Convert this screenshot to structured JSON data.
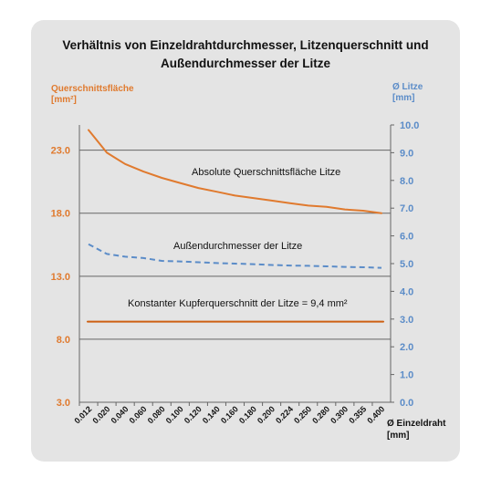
{
  "chart_data": {
    "type": "line",
    "title_line1": "Verhältnis von Einzeldrahtdurchmesser, Litzenquerschnitt und",
    "title_line2": "Außendurchmesser der Litze",
    "ylabel_left_line1": "Querschnittsfläche",
    "ylabel_left_line2": "[mm²]",
    "ylabel_right_line1": "Ø Litze",
    "ylabel_right_line2": "[mm]",
    "xlabel_line1": "Ø Einzeldraht",
    "xlabel_line2": "[mm]",
    "x_ticks": [
      "0.012",
      "0.020",
      "0.040",
      "0.060",
      "0.080",
      "0.100",
      "0.120",
      "0.140",
      "0.160",
      "0.180",
      "0.200",
      "0.224",
      "0.250",
      "0.280",
      "0.300",
      "0.355",
      "0.400"
    ],
    "y_left": {
      "range": [
        3.0,
        25.0
      ],
      "ticks": [
        "23.0",
        "18.0",
        "13.0",
        "8.0",
        "3.0"
      ],
      "tick_values": [
        23,
        18,
        13,
        8,
        3
      ]
    },
    "y_right": {
      "range": [
        0.0,
        10.0
      ],
      "ticks": [
        "10.0",
        "9.0",
        "8.0",
        "7.0",
        "6.0",
        "5.0",
        "4.0",
        "3.0",
        "2.0",
        "1.0",
        "0.0"
      ],
      "tick_values": [
        10,
        9,
        8,
        7,
        6,
        5,
        4,
        3,
        2,
        1,
        0
      ]
    },
    "colors": {
      "orange": "#e07a2e",
      "dark_orange": "#cd5f12",
      "blue": "#5b8cc8",
      "grid": "#666666"
    },
    "series": [
      {
        "axis": "left",
        "style": "solid",
        "color": "#e07a2e",
        "label": "Absolute Querschnittsfläche Litze",
        "values": [
          24.6,
          22.8,
          21.9,
          21.3,
          20.8,
          20.4,
          20.0,
          19.7,
          19.4,
          19.2,
          19.0,
          18.8,
          18.6,
          18.5,
          18.3,
          18.2,
          18.0
        ]
      },
      {
        "axis": "right",
        "style": "dashed",
        "color": "#5b8cc8",
        "label": "Außendurchmesser der Litze",
        "values": [
          5.7,
          5.35,
          5.25,
          5.2,
          5.1,
          5.08,
          5.05,
          5.02,
          5.0,
          4.98,
          4.95,
          4.93,
          4.92,
          4.9,
          4.88,
          4.87,
          4.85
        ]
      },
      {
        "axis": "left",
        "style": "solid",
        "color": "#cd5f12",
        "label": "Konstanter Kupferquerschnitt  der Litze = 9,4 mm²",
        "values": [
          9.4,
          9.4,
          9.4,
          9.4,
          9.4,
          9.4,
          9.4,
          9.4,
          9.4,
          9.4,
          9.4,
          9.4,
          9.4,
          9.4,
          9.4,
          9.4,
          9.4
        ]
      }
    ]
  }
}
